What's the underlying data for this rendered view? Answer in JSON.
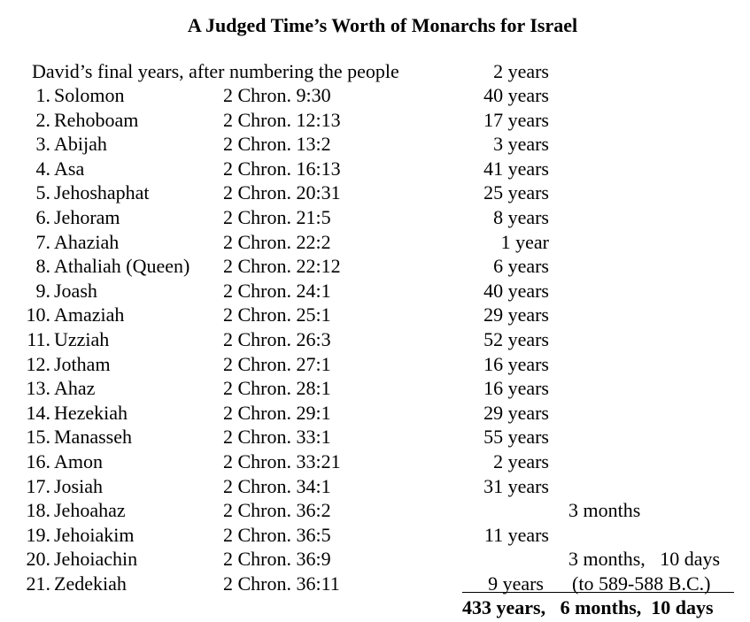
{
  "title": "A Judged Time’s Worth of Monarchs for Israel",
  "intro": {
    "text": "David’s final years, after numbering the people",
    "years": "2 years"
  },
  "monarchs": [
    {
      "num": "1.",
      "name": "Solomon",
      "ref": "2 Chron. 9:30",
      "years": "40 years",
      "extra": ""
    },
    {
      "num": "2.",
      "name": "Rehoboam",
      "ref": "2 Chron. 12:13",
      "years": "17 years",
      "extra": ""
    },
    {
      "num": "3.",
      "name": "Abijah",
      "ref": "2 Chron. 13:2",
      "years": "3 years",
      "extra": ""
    },
    {
      "num": "4.",
      "name": "Asa",
      "ref": "2 Chron. 16:13",
      "years": "41 years",
      "extra": ""
    },
    {
      "num": "5.",
      "name": "Jehoshaphat",
      "ref": "2 Chron. 20:31",
      "years": "25 years",
      "extra": ""
    },
    {
      "num": "6.",
      "name": "Jehoram",
      "ref": "2 Chron. 21:5",
      "years": "8 years",
      "extra": ""
    },
    {
      "num": "7.",
      "name": "Ahaziah",
      "ref": "2 Chron. 22:2",
      "years": "1 year",
      "extra": ""
    },
    {
      "num": "8.",
      "name": "Athaliah (Queen)",
      "ref": "2 Chron. 22:12",
      "years": "6 years",
      "extra": ""
    },
    {
      "num": "9.",
      "name": "Joash",
      "ref": "2 Chron. 24:1",
      "years": "40 years",
      "extra": ""
    },
    {
      "num": "10.",
      "name": "Amaziah",
      "ref": "2 Chron. 25:1",
      "years": "29 years",
      "extra": ""
    },
    {
      "num": "11.",
      "name": "Uzziah",
      "ref": "2 Chron. 26:3",
      "years": "52 years",
      "extra": ""
    },
    {
      "num": "12.",
      "name": "Jotham",
      "ref": "2 Chron. 27:1",
      "years": "16 years",
      "extra": ""
    },
    {
      "num": "13.",
      "name": "Ahaz",
      "ref": "2 Chron. 28:1",
      "years": "16 years",
      "extra": ""
    },
    {
      "num": "14.",
      "name": "Hezekiah",
      "ref": "2 Chron. 29:1",
      "years": "29 years",
      "extra": ""
    },
    {
      "num": "15.",
      "name": "Manasseh",
      "ref": "2 Chron. 33:1",
      "years": "55 years",
      "extra": ""
    },
    {
      "num": "16.",
      "name": "Amon",
      "ref": "2 Chron. 33:21",
      "years": "2 years",
      "extra": ""
    },
    {
      "num": "17.",
      "name": "Josiah",
      "ref": "2 Chron. 34:1",
      "years": "31 years",
      "extra": ""
    },
    {
      "num": "18.",
      "name": "Jehoahaz",
      "ref": "2 Chron. 36:2",
      "years": "",
      "extra": "3 months"
    },
    {
      "num": "19.",
      "name": "Jehoiakim",
      "ref": "2 Chron. 36:5",
      "years": "11 years",
      "extra": ""
    },
    {
      "num": "20.",
      "name": "Jehoiachin",
      "ref": "2 Chron. 36:9",
      "years": "",
      "extra": "3 months,   10 days"
    },
    {
      "num": "21.",
      "name": "Zedekiah",
      "ref": "2 Chron. 36:11",
      "years": "9 years",
      "extra": "(to 589-588 B.C.)"
    }
  ],
  "total": "433 years,   6 months,  10 days"
}
